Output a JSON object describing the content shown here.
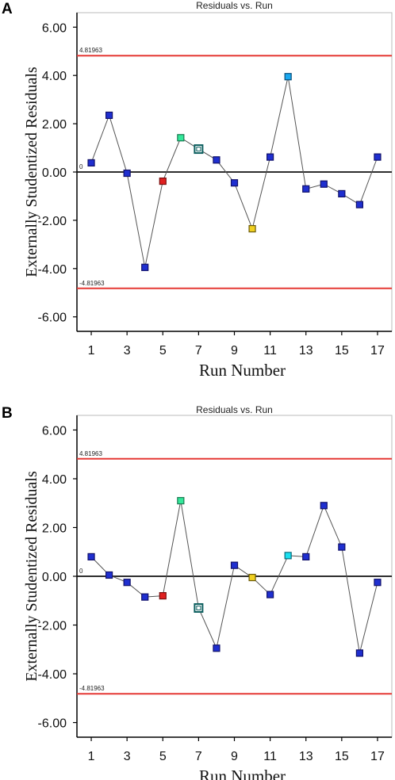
{
  "chart_data": [
    {
      "panel_label": "A",
      "type": "line",
      "title": "Residuals vs. Run",
      "xlabel": "Run Number",
      "ylabel": "Externally Studentized Residuals",
      "ylim": [
        -6.6,
        6.6
      ],
      "xlim": [
        0.2,
        17.8
      ],
      "yticks": [
        "6.00",
        "4.00",
        "2.00",
        "0.00",
        "-2.00",
        "-4.00",
        "-6.00"
      ],
      "ytick_values": [
        6,
        4,
        2,
        0,
        -2,
        -4,
        -6
      ],
      "xticks": [
        1,
        3,
        5,
        7,
        9,
        11,
        13,
        15,
        17
      ],
      "limit_upper": 4.81963,
      "limit_upper_label": "4.81963",
      "limit_lower": -4.81963,
      "limit_lower_label": "-4.81963",
      "zero_label": "0",
      "x": [
        1,
        2,
        3,
        4,
        5,
        6,
        7,
        8,
        9,
        10,
        11,
        12,
        13,
        14,
        15,
        16,
        17
      ],
      "values": [
        0.38,
        2.35,
        -0.05,
        -3.95,
        -0.38,
        1.42,
        0.95,
        0.5,
        -0.45,
        -2.35,
        0.62,
        3.95,
        -0.7,
        -0.5,
        -0.9,
        -1.35,
        0.62
      ],
      "marker_colors": [
        "#1f2fd0",
        "#1f2fd0",
        "#1f2fd0",
        "#1f2fd0",
        "#e02020",
        "#33e89a",
        "#ffffff",
        "#1f2fd0",
        "#1f2fd0",
        "#f0d020",
        "#1f2fd0",
        "#1aa8f0",
        "#1f2fd0",
        "#1f2fd0",
        "#1f2fd0",
        "#1f2fd0",
        "#1f2fd0"
      ],
      "marker_borders": [
        "#11116a",
        "#11116a",
        "#11116a",
        "#11116a",
        "#7a0d0d",
        "#1a7a52",
        "#0d5f5f",
        "#11116a",
        "#11116a",
        "#6a5a08",
        "#11116a",
        "#0b4f7a",
        "#11116a",
        "#11116a",
        "#11116a",
        "#11116a",
        "#11116a"
      ]
    },
    {
      "panel_label": "B",
      "type": "line",
      "title": "Residuals vs. Run",
      "xlabel": "Run Number",
      "ylabel": "Externally Studentized Residuals",
      "ylim": [
        -6.6,
        6.6
      ],
      "xlim": [
        0.2,
        17.8
      ],
      "yticks": [
        "6.00",
        "4.00",
        "2.00",
        "0.00",
        "-2.00",
        "-4.00",
        "-6.00"
      ],
      "ytick_values": [
        6,
        4,
        2,
        0,
        -2,
        -4,
        -6
      ],
      "xticks": [
        1,
        3,
        5,
        7,
        9,
        11,
        13,
        15,
        17
      ],
      "limit_upper": 4.81963,
      "limit_upper_label": "4.81963",
      "limit_lower": -4.81963,
      "limit_lower_label": "-4.81963",
      "zero_label": "0",
      "x": [
        1,
        2,
        3,
        4,
        5,
        6,
        7,
        8,
        9,
        10,
        11,
        12,
        13,
        14,
        15,
        16,
        17
      ],
      "values": [
        0.8,
        0.05,
        -0.25,
        -0.85,
        -0.8,
        3.1,
        -1.3,
        -2.95,
        0.45,
        -0.05,
        -0.75,
        0.85,
        0.8,
        2.9,
        1.2,
        -3.15,
        -0.25
      ],
      "marker_colors": [
        "#1f2fd0",
        "#1f2fd0",
        "#1f2fd0",
        "#1f2fd0",
        "#e02020",
        "#33e89a",
        "#ffffff",
        "#1f2fd0",
        "#1f2fd0",
        "#f0d020",
        "#1f2fd0",
        "#1ae0f0",
        "#1f2fd0",
        "#1f2fd0",
        "#1f2fd0",
        "#1f2fd0",
        "#1f2fd0"
      ],
      "marker_borders": [
        "#11116a",
        "#11116a",
        "#11116a",
        "#11116a",
        "#7a0d0d",
        "#1a7a52",
        "#0d5f5f",
        "#11116a",
        "#11116a",
        "#6a5a08",
        "#11116a",
        "#0b6a7a",
        "#11116a",
        "#11116a",
        "#11116a",
        "#11116a",
        "#11116a"
      ]
    }
  ],
  "colors": {
    "limit_line": "#e53935",
    "zero_line": "#111111",
    "connector": "#555555",
    "axis": "#000000"
  }
}
